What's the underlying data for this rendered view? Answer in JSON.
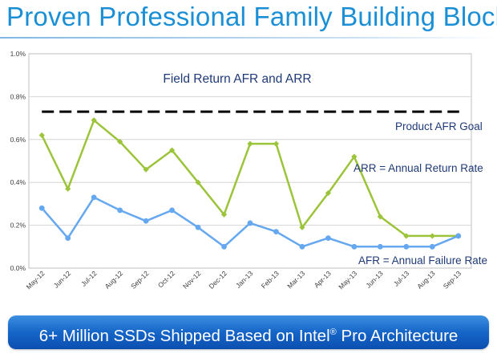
{
  "slide": {
    "title": "Proven Professional Family Building Blocks",
    "banner_prefix": "6+ Million SSDs Shipped Based on Intel",
    "banner_mark": "®",
    "banner_suffix": " Pro Architecture"
  },
  "chart_data": {
    "type": "line",
    "title": "Field Return AFR and ARR",
    "xlabel": "",
    "ylabel": "",
    "ylim": [
      0,
      0.01
    ],
    "y_ticks": [
      "0.0%",
      "0.2%",
      "0.4%",
      "0.6%",
      "0.8%",
      "1.0%"
    ],
    "y_tick_values": [
      0,
      0.002,
      0.004,
      0.006,
      0.008,
      0.01
    ],
    "grid": true,
    "categories": [
      "May-12",
      "Jun-12",
      "Jul-12",
      "Aug-12",
      "Sep-12",
      "Oct-12",
      "Nov-12",
      "Dec-12",
      "Jan-13",
      "Feb-13",
      "Mar-13",
      "Apr-13",
      "May-13",
      "Jun-13",
      "Jul-13",
      "Aug-13",
      "Sep-13"
    ],
    "series": [
      {
        "name": "ARR = Annual Return Rate",
        "color": "#9cc43a",
        "values": [
          0.0062,
          0.0037,
          0.0069,
          0.0059,
          0.0046,
          0.0055,
          0.004,
          0.0025,
          0.0058,
          0.0058,
          0.0019,
          0.0035,
          0.0052,
          0.0024,
          0.0015,
          0.0015,
          0.0015
        ]
      },
      {
        "name": "AFR = Annual Failure Rate",
        "color": "#65a8ef",
        "values": [
          0.0028,
          0.0014,
          0.0033,
          0.0027,
          0.0022,
          0.0027,
          0.0019,
          0.001,
          0.0021,
          0.0017,
          0.001,
          0.0014,
          0.001,
          0.001,
          0.001,
          0.001,
          0.0015
        ]
      }
    ],
    "goal": {
      "label": "Product AFR Goal",
      "value": 0.0073,
      "color": "#000000"
    },
    "label_color": "#1f3a78"
  }
}
